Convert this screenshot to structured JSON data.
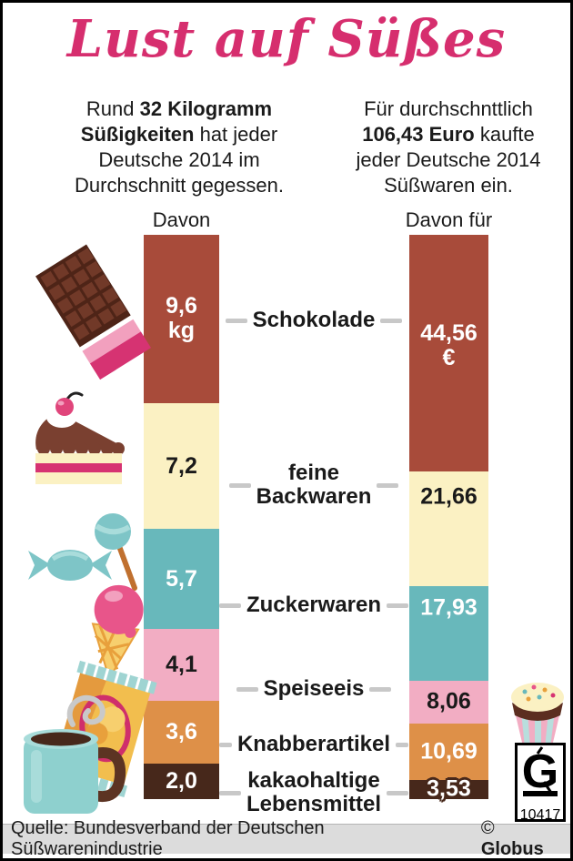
{
  "title": "Lust auf Süßes",
  "intro_left": {
    "line1_normal": "Rund ",
    "line1_bold": "32 Kilogramm",
    "line2_bold": "Süßigkeiten",
    "line2_normal": " hat jeder",
    "line3": "Deutsche 2014 im",
    "line4": "Durchschnitt gegessen."
  },
  "intro_right": {
    "line1": "Für durchschnttlich",
    "line2_bold": "106,43 Euro",
    "line2_normal": " kaufte",
    "line3": "jeder Deutsche 2014",
    "line4": "Süßwaren ein."
  },
  "columns": {
    "left_header": "Davon",
    "right_header": "Davon für"
  },
  "chart_data": {
    "type": "bar",
    "orientation": "vertical-stacked",
    "title": "Lust auf Süßes",
    "categories": [
      "Schokolade",
      "feine Backwaren",
      "Zuckerwaren",
      "Speiseeis",
      "Knabberartikel",
      "kakaohaltige Lebensmittel"
    ],
    "categories_display": [
      "Schokolade",
      "feine\nBackwaren",
      "Zuckerwaren",
      "Speiseeis",
      "Knabberartikel",
      "kakaohaltige\nLebensmittel"
    ],
    "series": [
      {
        "name": "Davon",
        "unit": "kg",
        "total": 32,
        "values": [
          9.6,
          7.2,
          5.7,
          4.1,
          3.6,
          2.0
        ],
        "display": [
          "9,6",
          "7,2",
          "5,7",
          "4,1",
          "3,6",
          "2,0"
        ]
      },
      {
        "name": "Davon für",
        "unit": "€",
        "total": 106.43,
        "values": [
          44.56,
          21.66,
          17.93,
          8.06,
          10.69,
          3.53
        ],
        "display": [
          "44,56",
          "21,66",
          "17,93",
          "8,06",
          "10,69",
          "3,53"
        ]
      }
    ],
    "segment_colors": [
      "#a84b3a",
      "#fbf1c3",
      "#68b8bb",
      "#f2adc3",
      "#de9048",
      "#47281b"
    ],
    "value_text_colors": [
      "#ffffff",
      "#1a1a1a",
      "#ffffff",
      "#1a1a1a",
      "#ffffff",
      "#ffffff"
    ],
    "legend_position": "between-bars",
    "accent_color": "#d62e6e",
    "connector_color": "#c8c8c8"
  },
  "globus_logo": {
    "letter": "G",
    "number": "10417"
  },
  "footer": {
    "source": "Quelle: Bundesverband der Deutschen Süßwarenindustrie",
    "copyright": "©",
    "brand": "Globus"
  }
}
